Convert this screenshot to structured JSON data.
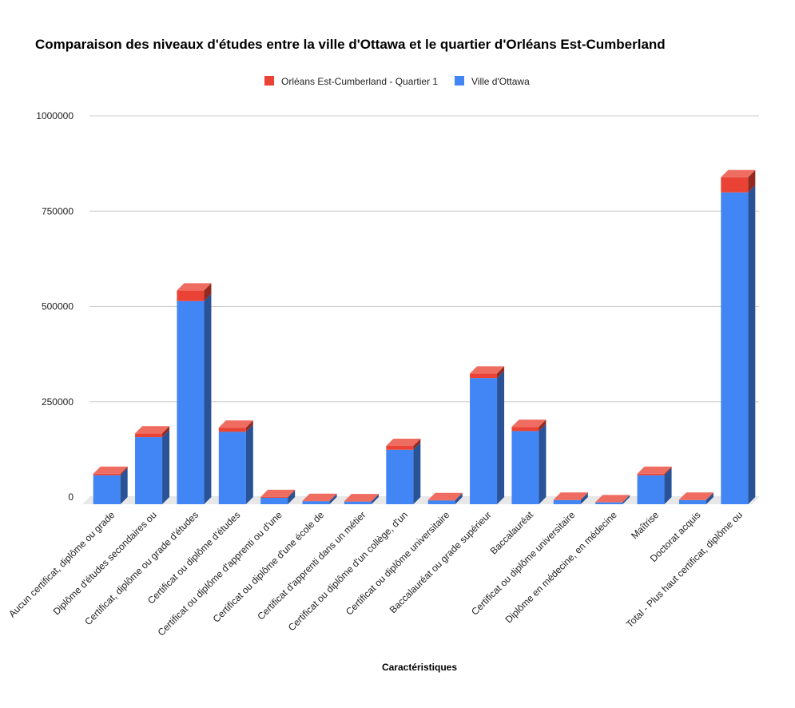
{
  "chart_data": {
    "type": "bar",
    "stacked": true,
    "style": "3d",
    "title": "Comparaison des niveaux d'études entre la ville d'Ottawa et le quartier d'Orléans Est-Cumberland",
    "xlabel": "Caractéristiques",
    "ylabel": "",
    "ylim": [
      0,
      1000000
    ],
    "yticks": [
      0,
      250000,
      500000,
      750000,
      1000000
    ],
    "grid": true,
    "legend_position": "top",
    "categories": [
      "Aucun certificat, diplôme ou grade",
      "Diplôme d'études secondaires ou",
      "Certificat, diplôme ou grade d'études",
      "Certificat ou diplôme d'études",
      "Certificat ou diplôme d'apprenti ou d'une",
      "Certificat ou diplôme d'une école de",
      "Certificat d'apprenti dans un métier",
      "Certificat ou diplôme d'un collège, d'un",
      "Certificat ou diplôme universitaire",
      "Baccalauréat ou grade supérieur",
      "Baccalauréat",
      "Certificat ou diplôme universitaire",
      "Diplôme en médecine, en médecine",
      "Maîtrise",
      "Doctorat acquis",
      "Total - Plus haut certificat, diplôme ou"
    ],
    "series": [
      {
        "name": "Ville d'Ottawa",
        "color": "#4285f4",
        "values": [
          76000,
          176000,
          533000,
          190000,
          17000,
          8000,
          7000,
          143000,
          10000,
          331000,
          192000,
          11000,
          5000,
          76000,
          11000,
          818000
        ]
      },
      {
        "name": "Orléans Est-Cumberland - Quartier 1",
        "color": "#ea4335",
        "values": [
          4000,
          10000,
          28000,
          11000,
          2000,
          1000,
          1000,
          10000,
          1000,
          12000,
          11000,
          1000,
          400,
          4000,
          1000,
          40000
        ]
      }
    ]
  }
}
